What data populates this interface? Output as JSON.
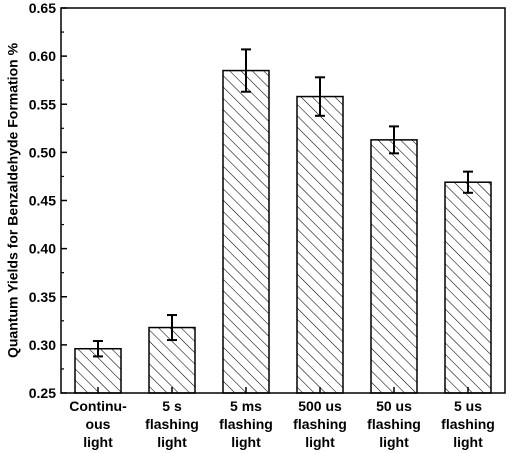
{
  "chart_data": {
    "type": "bar",
    "title": "",
    "xlabel": "",
    "ylabel": "Quantum Yields for Benzaldehyde Formation %",
    "ylim": [
      0.25,
      0.65
    ],
    "yticks": [
      "0.25",
      "0.30",
      "0.35",
      "0.40",
      "0.45",
      "0.50",
      "0.55",
      "0.60",
      "0.65"
    ],
    "grid": false,
    "legend": "none",
    "bar_pattern": "diagonal-hatch",
    "colors": {
      "bar_fill": "#ffffff",
      "hatch": "#000000",
      "axis": "#000000"
    },
    "categories": [
      [
        "Continu-",
        "ous",
        "light"
      ],
      [
        "5 s",
        "flashing",
        "light"
      ],
      [
        "5 ms",
        "flashing",
        "light"
      ],
      [
        "500 us",
        "flashing",
        "light"
      ],
      [
        "50 us",
        "flashing",
        "light"
      ],
      [
        "5 us",
        "flashing",
        "light"
      ]
    ],
    "values": [
      0.296,
      0.318,
      0.585,
      0.558,
      0.513,
      0.469
    ],
    "errors": [
      0.008,
      0.013,
      0.022,
      0.02,
      0.014,
      0.011
    ]
  }
}
